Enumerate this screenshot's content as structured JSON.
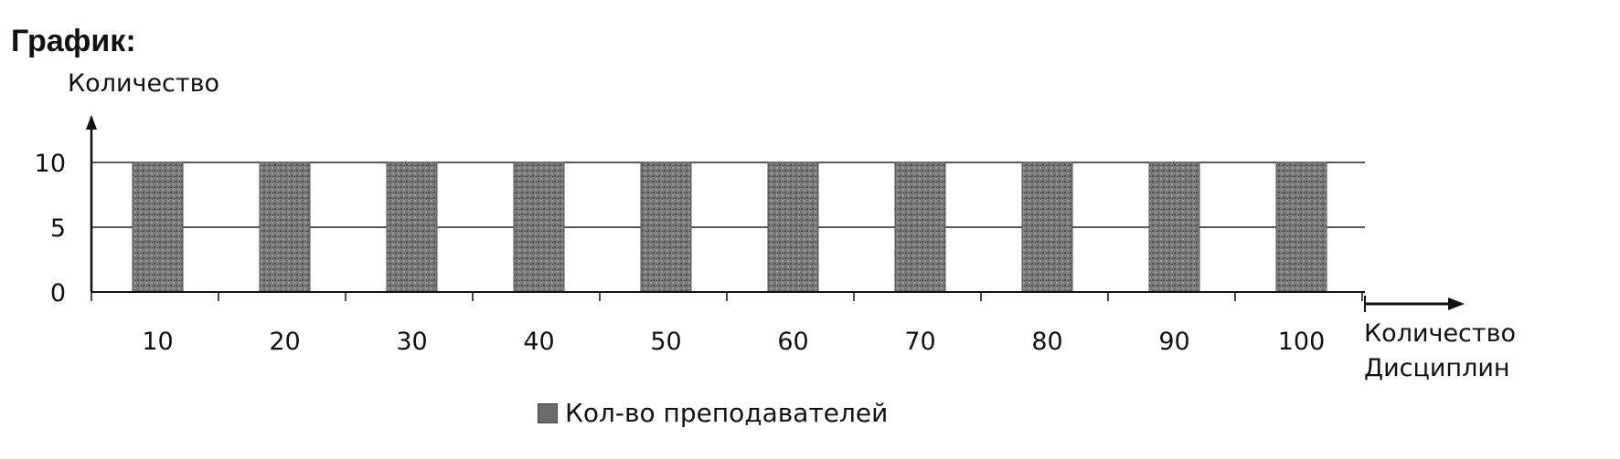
{
  "page_title": "График:",
  "chart_data": {
    "type": "bar",
    "title": "",
    "ylabel": "Количество",
    "xlabel": [
      "Количество",
      "Дисциплин"
    ],
    "categories": [
      "10",
      "20",
      "30",
      "40",
      "50",
      "60",
      "70",
      "80",
      "90",
      "100"
    ],
    "yticks": [
      "0",
      "5",
      "10"
    ],
    "ylim": [
      0,
      10
    ],
    "series": [
      {
        "name": "Кол-во преподавателей",
        "values": [
          10,
          10,
          10,
          10,
          10,
          10,
          10,
          10,
          10,
          10
        ]
      }
    ],
    "grid": true,
    "legend_position": "bottom-center",
    "colors": {
      "bar": "#6b6b6b",
      "axis": "#111111",
      "grid": "#222222"
    }
  }
}
